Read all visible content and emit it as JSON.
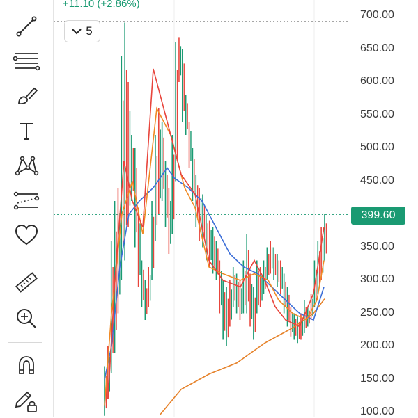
{
  "header": {
    "change": "+11.10 (+2.86%)",
    "indicator_count": "5"
  },
  "toolbar": {
    "tools": [
      {
        "name": "trend-line-icon"
      },
      {
        "name": "horizontal-lines-icon"
      },
      {
        "name": "brush-icon"
      },
      {
        "name": "text-icon"
      },
      {
        "name": "pattern-icon"
      },
      {
        "name": "forecast-icon"
      },
      {
        "name": "heart-icon"
      },
      {
        "name": "ruler-icon"
      },
      {
        "name": "zoom-in-icon"
      },
      {
        "name": "magnet-icon"
      },
      {
        "name": "lock-pencil-icon"
      }
    ]
  },
  "price_axis": {
    "labels": [
      "700.00",
      "650.00",
      "600.00",
      "550.00",
      "500.00",
      "450.00",
      "350.00",
      "300.00",
      "250.00",
      "200.00",
      "150.00",
      "100.00"
    ]
  },
  "last_price": "399.60",
  "colors": {
    "up": "#1a9a72",
    "down": "#e8453c",
    "ma_blue": "#3d6fd8",
    "ma_orange": "#f08a24",
    "ma_red": "#e8453c",
    "ma_tan": "#e6822a",
    "icon": "#2b2b2b"
  },
  "chart_data": {
    "type": "candlestick",
    "y_axis_ticks": [
      700,
      650,
      600,
      550,
      500,
      450,
      350,
      300,
      250,
      200,
      150,
      100
    ],
    "ylim": [
      97,
      735
    ],
    "last_price": 399.6,
    "high_marker": 692,
    "candles_hl": [
      [
        95,
        170
      ],
      [
        120,
        200
      ],
      [
        160,
        360
      ],
      [
        190,
        420
      ],
      [
        250,
        440
      ],
      [
        300,
        640
      ],
      [
        330,
        690
      ],
      [
        380,
        600
      ],
      [
        420,
        520
      ],
      [
        350,
        500
      ],
      [
        290,
        410
      ],
      [
        260,
        330
      ],
      [
        240,
        300
      ],
      [
        260,
        320
      ],
      [
        300,
        420
      ],
      [
        360,
        520
      ],
      [
        400,
        560
      ],
      [
        420,
        540
      ],
      [
        380,
        480
      ],
      [
        340,
        440
      ],
      [
        370,
        520
      ],
      [
        450,
        660
      ],
      [
        600,
        668
      ],
      [
        540,
        650
      ],
      [
        520,
        580
      ],
      [
        470,
        540
      ],
      [
        420,
        500
      ],
      [
        380,
        460
      ],
      [
        360,
        440
      ],
      [
        350,
        430
      ],
      [
        330,
        400
      ],
      [
        320,
        390
      ],
      [
        310,
        380
      ],
      [
        300,
        360
      ],
      [
        250,
        330
      ],
      [
        210,
        300
      ],
      [
        200,
        290
      ],
      [
        230,
        300
      ],
      [
        260,
        320
      ],
      [
        250,
        310
      ],
      [
        240,
        300
      ],
      [
        250,
        330
      ],
      [
        250,
        370
      ],
      [
        230,
        310
      ],
      [
        210,
        290
      ],
      [
        250,
        330
      ],
      [
        260,
        320
      ],
      [
        280,
        330
      ],
      [
        300,
        350
      ],
      [
        310,
        360
      ],
      [
        300,
        350
      ],
      [
        290,
        340
      ],
      [
        280,
        330
      ],
      [
        250,
        310
      ],
      [
        230,
        290
      ],
      [
        215,
        260
      ],
      [
        210,
        250
      ],
      [
        205,
        245
      ],
      [
        210,
        250
      ],
      [
        220,
        270
      ],
      [
        230,
        260
      ],
      [
        240,
        280
      ],
      [
        260,
        330
      ],
      [
        280,
        360
      ],
      [
        300,
        380
      ],
      [
        330,
        400
      ]
    ],
    "ma_blue": [
      [
        150,
        150
      ],
      [
        160,
        200
      ],
      [
        172,
        320
      ],
      [
        185,
        400
      ],
      [
        200,
        420
      ],
      [
        220,
        440
      ],
      [
        240,
        470
      ],
      [
        250,
        455
      ],
      [
        270,
        440
      ],
      [
        290,
        420
      ],
      [
        310,
        380
      ],
      [
        330,
        340
      ],
      [
        350,
        320
      ],
      [
        370,
        310
      ],
      [
        390,
        290
      ],
      [
        410,
        270
      ],
      [
        430,
        250
      ],
      [
        450,
        240
      ],
      [
        465,
        290
      ]
    ],
    "ma_orange": [
      [
        150,
        110
      ],
      [
        160,
        250
      ],
      [
        175,
        400
      ],
      [
        190,
        450
      ],
      [
        205,
        370
      ],
      [
        225,
        560
      ],
      [
        245,
        520
      ],
      [
        265,
        440
      ],
      [
        280,
        410
      ],
      [
        300,
        320
      ],
      [
        320,
        310
      ],
      [
        345,
        300
      ],
      [
        365,
        310
      ],
      [
        385,
        300
      ],
      [
        400,
        270
      ],
      [
        420,
        250
      ],
      [
        440,
        240
      ],
      [
        455,
        270
      ],
      [
        465,
        330
      ]
    ],
    "ma_red": [
      [
        155,
        120
      ],
      [
        165,
        300
      ],
      [
        178,
        480
      ],
      [
        190,
        420
      ],
      [
        205,
        380
      ],
      [
        220,
        620
      ],
      [
        240,
        540
      ],
      [
        260,
        460
      ],
      [
        280,
        430
      ],
      [
        300,
        330
      ],
      [
        320,
        300
      ],
      [
        345,
        290
      ],
      [
        365,
        330
      ],
      [
        380,
        300
      ],
      [
        395,
        260
      ],
      [
        410,
        240
      ],
      [
        430,
        230
      ],
      [
        450,
        280
      ],
      [
        465,
        380
      ]
    ],
    "ma_long": [
      [
        230,
        97
      ],
      [
        260,
        135
      ],
      [
        300,
        158
      ],
      [
        340,
        175
      ],
      [
        380,
        205
      ],
      [
        420,
        228
      ],
      [
        450,
        250
      ],
      [
        466,
        272
      ]
    ]
  }
}
